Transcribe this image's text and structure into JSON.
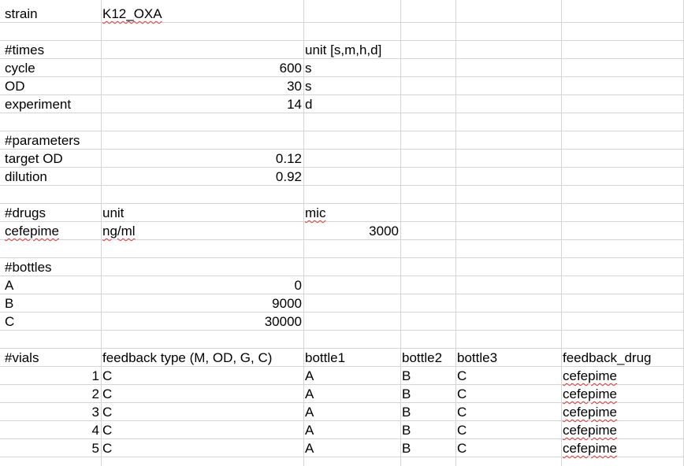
{
  "sheet": {
    "strain_label": "strain",
    "strain_value": "K12_OXA",
    "times": {
      "header": "#times",
      "unit_header": "unit [s,m,h,d]",
      "rows": [
        {
          "label": "cycle",
          "value": "600",
          "unit": "s"
        },
        {
          "label": "OD",
          "value": "30",
          "unit": "s"
        },
        {
          "label": "experiment",
          "value": "14",
          "unit": "d"
        }
      ]
    },
    "parameters": {
      "header": "#parameters",
      "rows": [
        {
          "label": "target OD",
          "value": "0.12"
        },
        {
          "label": "dilution",
          "value": "0.92"
        }
      ]
    },
    "drugs": {
      "header": "#drugs",
      "unit_header": "unit",
      "mic_header": "mic",
      "rows": [
        {
          "name": "cefepime",
          "unit": "ng/ml",
          "mic": "3000"
        }
      ]
    },
    "bottles": {
      "header": "#bottles",
      "rows": [
        {
          "label": "A",
          "value": "0"
        },
        {
          "label": "B",
          "value": "9000"
        },
        {
          "label": "C",
          "value": "30000"
        }
      ]
    },
    "vials": {
      "header": "#vials",
      "columns": [
        "feedback type (M, OD, G, C)",
        "bottle1",
        "bottle2",
        "bottle3",
        "feedback_drug"
      ],
      "rows": [
        {
          "index": "1",
          "feedback_type": "C",
          "bottle1": "A",
          "bottle2": "B",
          "bottle3": "C",
          "feedback_drug": "cefepime"
        },
        {
          "index": "2",
          "feedback_type": "C",
          "bottle1": "A",
          "bottle2": "B",
          "bottle3": "C",
          "feedback_drug": "cefepime"
        },
        {
          "index": "3",
          "feedback_type": "C",
          "bottle1": "A",
          "bottle2": "B",
          "bottle3": "C",
          "feedback_drug": "cefepime"
        },
        {
          "index": "4",
          "feedback_type": "C",
          "bottle1": "A",
          "bottle2": "B",
          "bottle3": "C",
          "feedback_drug": "cefepime"
        },
        {
          "index": "5",
          "feedback_type": "C",
          "bottle1": "A",
          "bottle2": "B",
          "bottle3": "C",
          "feedback_drug": "cefepime"
        }
      ]
    }
  }
}
